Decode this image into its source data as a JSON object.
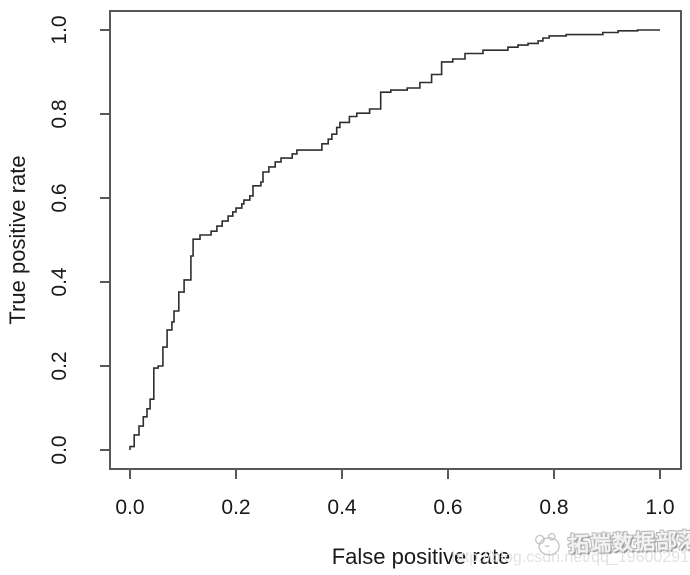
{
  "figure": {
    "background": "#ffffff",
    "axis_color": "#585858",
    "curve_color": "#2e2e2e",
    "text_color": "#1a1a1a"
  },
  "watermark": {
    "url_text": "http://blog.csdn.net/qq_19600291",
    "url_color": "#e2e2e2",
    "brand_text": "拓端数据部落",
    "brand_color": "#bdbdbd",
    "logo_icon": "panda-doodle-icon"
  },
  "chart_data": {
    "type": "line",
    "subtype": "roc-step-curve",
    "title": "",
    "xlabel": "False positive rate",
    "ylabel": "True positive rate",
    "xlim": [
      0.0,
      1.0
    ],
    "ylim": [
      0.0,
      1.0
    ],
    "x_ticks": [
      "0.0",
      "0.2",
      "0.4",
      "0.6",
      "0.8",
      "1.0"
    ],
    "y_ticks": [
      "0.0",
      "0.2",
      "0.4",
      "0.6",
      "0.8",
      "1.0"
    ],
    "grid": false,
    "legend": "none",
    "series": [
      {
        "name": "ROC curve",
        "points": [
          [
            0.0,
            0.0
          ],
          [
            0.0,
            0.008
          ],
          [
            0.008,
            0.008
          ],
          [
            0.008,
            0.036
          ],
          [
            0.017,
            0.036
          ],
          [
            0.017,
            0.057
          ],
          [
            0.025,
            0.057
          ],
          [
            0.025,
            0.079
          ],
          [
            0.032,
            0.079
          ],
          [
            0.032,
            0.098
          ],
          [
            0.038,
            0.098
          ],
          [
            0.038,
            0.121
          ],
          [
            0.045,
            0.121
          ],
          [
            0.045,
            0.195
          ],
          [
            0.053,
            0.195
          ],
          [
            0.053,
            0.2
          ],
          [
            0.062,
            0.2
          ],
          [
            0.062,
            0.245
          ],
          [
            0.07,
            0.245
          ],
          [
            0.07,
            0.286
          ],
          [
            0.079,
            0.286
          ],
          [
            0.079,
            0.305
          ],
          [
            0.083,
            0.305
          ],
          [
            0.083,
            0.331
          ],
          [
            0.092,
            0.331
          ],
          [
            0.092,
            0.376
          ],
          [
            0.102,
            0.376
          ],
          [
            0.102,
            0.405
          ],
          [
            0.115,
            0.405
          ],
          [
            0.115,
            0.462
          ],
          [
            0.119,
            0.462
          ],
          [
            0.119,
            0.502
          ],
          [
            0.132,
            0.502
          ],
          [
            0.132,
            0.512
          ],
          [
            0.153,
            0.512
          ],
          [
            0.153,
            0.521
          ],
          [
            0.164,
            0.521
          ],
          [
            0.164,
            0.533
          ],
          [
            0.174,
            0.533
          ],
          [
            0.174,
            0.545
          ],
          [
            0.185,
            0.545
          ],
          [
            0.185,
            0.557
          ],
          [
            0.194,
            0.557
          ],
          [
            0.194,
            0.567
          ],
          [
            0.2,
            0.567
          ],
          [
            0.2,
            0.576
          ],
          [
            0.211,
            0.576
          ],
          [
            0.211,
            0.586
          ],
          [
            0.215,
            0.586
          ],
          [
            0.215,
            0.595
          ],
          [
            0.226,
            0.595
          ],
          [
            0.226,
            0.605
          ],
          [
            0.232,
            0.605
          ],
          [
            0.232,
            0.629
          ],
          [
            0.247,
            0.629
          ],
          [
            0.247,
            0.638
          ],
          [
            0.251,
            0.638
          ],
          [
            0.251,
            0.662
          ],
          [
            0.262,
            0.662
          ],
          [
            0.262,
            0.674
          ],
          [
            0.274,
            0.674
          ],
          [
            0.274,
            0.686
          ],
          [
            0.285,
            0.686
          ],
          [
            0.285,
            0.695
          ],
          [
            0.306,
            0.695
          ],
          [
            0.306,
            0.705
          ],
          [
            0.315,
            0.705
          ],
          [
            0.315,
            0.714
          ],
          [
            0.362,
            0.714
          ],
          [
            0.362,
            0.729
          ],
          [
            0.374,
            0.729
          ],
          [
            0.374,
            0.74
          ],
          [
            0.381,
            0.74
          ],
          [
            0.381,
            0.752
          ],
          [
            0.39,
            0.752
          ],
          [
            0.39,
            0.768
          ],
          [
            0.396,
            0.768
          ],
          [
            0.396,
            0.78
          ],
          [
            0.414,
            0.78
          ],
          [
            0.414,
            0.794
          ],
          [
            0.428,
            0.794
          ],
          [
            0.428,
            0.802
          ],
          [
            0.452,
            0.802
          ],
          [
            0.452,
            0.812
          ],
          [
            0.473,
            0.812
          ],
          [
            0.473,
            0.852
          ],
          [
            0.492,
            0.852
          ],
          [
            0.492,
            0.857
          ],
          [
            0.523,
            0.857
          ],
          [
            0.523,
            0.862
          ],
          [
            0.547,
            0.862
          ],
          [
            0.547,
            0.875
          ],
          [
            0.569,
            0.875
          ],
          [
            0.569,
            0.894
          ],
          [
            0.588,
            0.894
          ],
          [
            0.588,
            0.924
          ],
          [
            0.609,
            0.924
          ],
          [
            0.609,
            0.931
          ],
          [
            0.632,
            0.931
          ],
          [
            0.632,
            0.944
          ],
          [
            0.666,
            0.944
          ],
          [
            0.666,
            0.952
          ],
          [
            0.713,
            0.952
          ],
          [
            0.713,
            0.959
          ],
          [
            0.732,
            0.959
          ],
          [
            0.732,
            0.964
          ],
          [
            0.751,
            0.964
          ],
          [
            0.751,
            0.968
          ],
          [
            0.77,
            0.968
          ],
          [
            0.77,
            0.974
          ],
          [
            0.779,
            0.974
          ],
          [
            0.779,
            0.981
          ],
          [
            0.791,
            0.981
          ],
          [
            0.791,
            0.986
          ],
          [
            0.823,
            0.986
          ],
          [
            0.823,
            0.989
          ],
          [
            0.892,
            0.989
          ],
          [
            0.892,
            0.994
          ],
          [
            0.921,
            0.994
          ],
          [
            0.921,
            0.998
          ],
          [
            0.958,
            0.998
          ],
          [
            0.958,
            1.0
          ],
          [
            1.0,
            1.0
          ]
        ]
      }
    ]
  }
}
